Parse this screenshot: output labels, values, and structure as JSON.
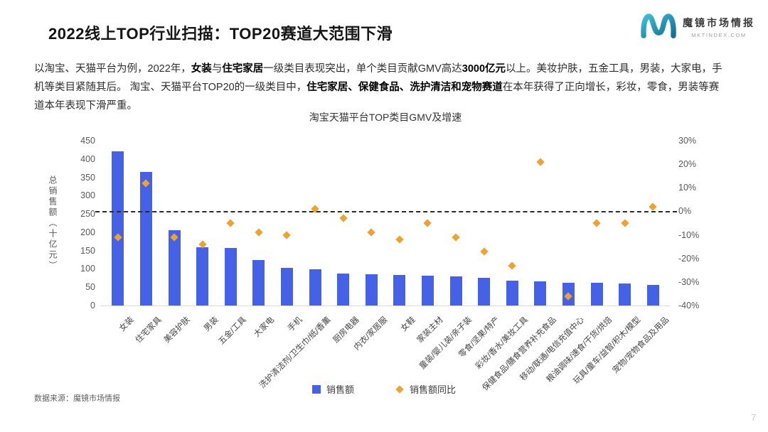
{
  "header": {
    "title": "2022线上TOP行业扫描：TOP20赛道大范围下滑",
    "logo": {
      "brand": "魔镜市场情报",
      "domain": "MKTINDEX.COM"
    }
  },
  "intro": {
    "segments": [
      {
        "text": "以淘宝、天猫平台为例，2022年，",
        "bold": false
      },
      {
        "text": "女装",
        "bold": true
      },
      {
        "text": "与",
        "bold": false
      },
      {
        "text": "住宅家居",
        "bold": true
      },
      {
        "text": "一级类目表现突出，单个类目贡献GMV高达",
        "bold": false
      },
      {
        "text": "3000亿元",
        "bold": true
      },
      {
        "text": "以上。美妆护肤，五金工具，男装，大家电，手机等类目紧随其后。 淘宝、天猫平台TOP20的一级类目中，",
        "bold": false
      },
      {
        "text": "住宅家居、保健食品、洗护清洁和宠物赛道",
        "bold": true
      },
      {
        "text": "在本年获得了正向增长，彩妆，零食，男装等赛道本年表现下滑严重。",
        "bold": false
      }
    ]
  },
  "chart_data": {
    "type": "bar",
    "title": "淘宝天猫平台TOP类目GMV及增速",
    "categories": [
      "女装",
      "住宅家具",
      "美容护肤",
      "男装",
      "五金/工具",
      "大家电",
      "手机",
      "洗护清洁剂/卫生巾/纸/香薰",
      "厨房电器",
      "内衣/家居服",
      "女鞋",
      "家装主材",
      "童装/婴儿装/亲子装",
      "零食/坚果/特产",
      "彩妆/香水/美妆工具",
      "保健食品/膳食营养补充食品",
      "移动/联通/电信充值中心",
      "粮油调味/速食/干货/烘焙",
      "玩具/童车/益智/积木/模型",
      "宠物/宠物食品及用品"
    ],
    "series": [
      {
        "name": "销售额",
        "type": "bar",
        "axis": "left",
        "color": "#4561e8",
        "values": [
          420,
          365,
          206,
          160,
          157,
          125,
          102,
          98,
          87,
          86,
          84,
          82,
          80,
          76,
          67,
          65,
          62,
          63,
          60,
          57
        ]
      },
      {
        "name": "销售额同比",
        "type": "scatter",
        "marker": "diamond",
        "axis": "right",
        "color": "#efa22f",
        "values": [
          -11,
          12,
          -11,
          -14,
          -5,
          -9,
          -10,
          1,
          -3,
          -9,
          -12,
          -5,
          -11,
          -17,
          -23,
          21,
          -36,
          -5,
          -5,
          2
        ]
      }
    ],
    "left_axis": {
      "label": "总销售额（十亿元）",
      "min": 0,
      "max": 450,
      "step": 50,
      "ticks": [
        "450",
        "400",
        "350",
        "300",
        "250",
        "200",
        "150",
        "100",
        "50",
        "0"
      ]
    },
    "right_axis": {
      "min": -40,
      "max": 30,
      "step": 10,
      "ticks": [
        "30%",
        "20%",
        "10%",
        "0%",
        "-10%",
        "-20%",
        "-30%",
        "-40%"
      ]
    },
    "reference_line": {
      "axis": "right",
      "value": 0,
      "style": "dashed"
    },
    "legend_position": "bottom",
    "grid": false
  },
  "footer": {
    "source": "数据来源：魔镜市场情报",
    "page": "7"
  }
}
